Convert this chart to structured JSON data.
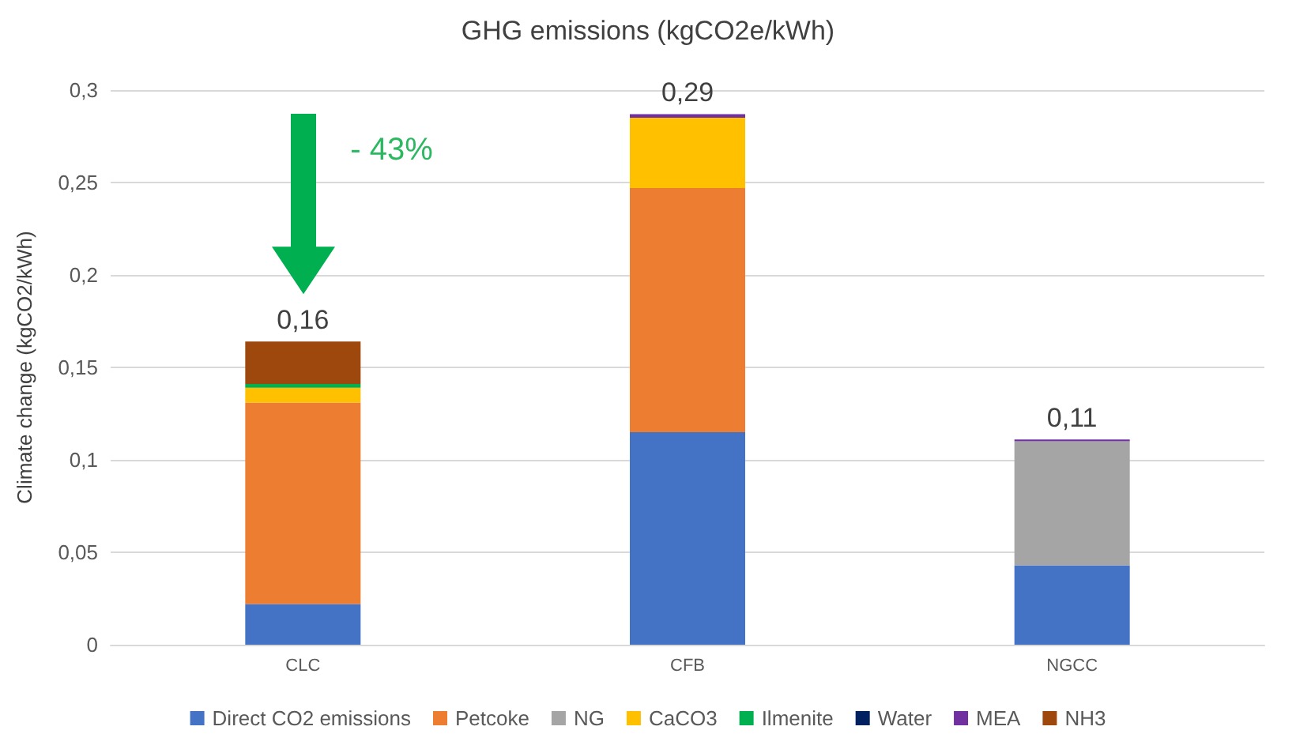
{
  "chart_data": {
    "type": "bar",
    "stacked": true,
    "title": "GHG emissions (kgCO2e/kWh)",
    "ylabel": "Climate change (kgCO2/kWh)",
    "categories": [
      "CLC",
      "CFB",
      "NGCC"
    ],
    "series": [
      {
        "name": "Direct CO2 emissions",
        "color": "#4472c4",
        "values": [
          0.022,
          0.115,
          0.043
        ]
      },
      {
        "name": "Petcoke",
        "color": "#ed7d31",
        "values": [
          0.109,
          0.132,
          0
        ]
      },
      {
        "name": "NG",
        "color": "#a5a5a5",
        "values": [
          0,
          0,
          0.067
        ]
      },
      {
        "name": "CaCO3",
        "color": "#ffc000",
        "values": [
          0.008,
          0.038,
          0
        ]
      },
      {
        "name": "Ilmenite",
        "color": "#00b050",
        "values": [
          0.002,
          0,
          0
        ]
      },
      {
        "name": "Water",
        "color": "#002060",
        "values": [
          0,
          0,
          0
        ]
      },
      {
        "name": "MEA",
        "color": "#7030a0",
        "values": [
          0,
          0.002,
          0.001
        ]
      },
      {
        "name": "NH3",
        "color": "#9e480e",
        "values": [
          0.023,
          0,
          0
        ]
      }
    ],
    "totals": [
      "0,16",
      "0,29",
      "0,11"
    ],
    "annotations": [
      "- 43%"
    ],
    "ylim": [
      0,
      0.3
    ],
    "yticks": [
      0,
      {
        "value": 0.05,
        "label": "0,05"
      },
      {
        "value": 0.1,
        "label": "0,1"
      },
      {
        "value": 0.15,
        "label": "0,15"
      },
      {
        "value": 0.2,
        "label": "0,2"
      },
      {
        "value": 0.25,
        "label": "0,25"
      },
      {
        "value": 0.3,
        "label": "0,3"
      }
    ],
    "grid": "y",
    "legend": "bottom"
  }
}
